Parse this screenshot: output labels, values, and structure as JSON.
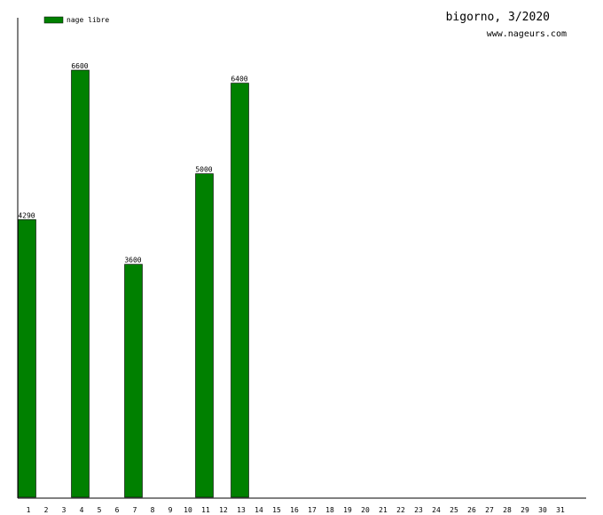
{
  "chart_data": {
    "type": "bar",
    "title": "bigorno, 3/2020",
    "subtitle": "www.nageurs.com",
    "xlabel": "",
    "ylabel": "",
    "categories": [
      "1",
      "2",
      "3",
      "4",
      "5",
      "6",
      "7",
      "8",
      "9",
      "10",
      "11",
      "12",
      "13",
      "14",
      "15",
      "16",
      "17",
      "18",
      "19",
      "20",
      "21",
      "22",
      "23",
      "24",
      "25",
      "26",
      "27",
      "28",
      "29",
      "30",
      "31"
    ],
    "series": [
      {
        "name": "nage libre",
        "color": "#008000",
        "values": [
          4290,
          null,
          null,
          6600,
          null,
          null,
          3600,
          null,
          null,
          null,
          5000,
          null,
          6400,
          null,
          null,
          null,
          null,
          null,
          null,
          null,
          null,
          null,
          null,
          null,
          null,
          null,
          null,
          null,
          null,
          null,
          null
        ]
      }
    ],
    "ylim": [
      0,
      7400
    ],
    "grid": false,
    "legend_position": "top-left"
  }
}
